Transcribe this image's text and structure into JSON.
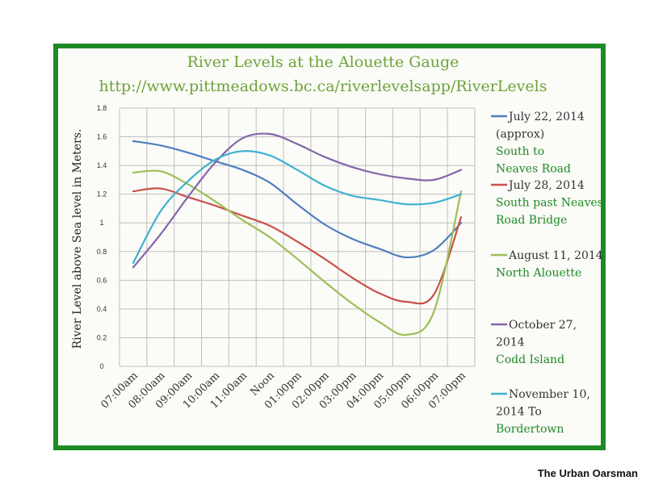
{
  "chart_data": {
    "type": "line",
    "title": "River Levels at the Alouette Gauge",
    "subtitle": "http://www.pittmeadows.bc.ca/riverlevelsapp/RiverLevels",
    "ylabel": "River Level  above  Sea level in Meters.",
    "xlabel": "",
    "ylim": [
      0,
      1.8
    ],
    "yticks": [
      "0",
      "0.2",
      "0.4",
      "0.6",
      "0.8",
      "1",
      "1.2",
      "1.4",
      "1.6",
      "1.8"
    ],
    "categories": [
      "07:00am",
      "08:00am",
      "09:00am",
      "10:00am",
      "11:00am",
      "Noon",
      "01:00pm",
      "02:00pm",
      "03:00pm",
      "04:00pm",
      "05:00pm",
      "06:00pm",
      "07:00pm"
    ],
    "grid": true,
    "legend_position": "right",
    "series": [
      {
        "name": "July 22, 2014 (approx)",
        "note": "South to Neaves Road",
        "color": "#4f7fbf",
        "values": [
          1.57,
          1.54,
          1.49,
          1.43,
          1.37,
          1.28,
          1.13,
          0.99,
          0.89,
          0.82,
          0.76,
          0.81,
          1.0
        ]
      },
      {
        "name": "July 28, 2014",
        "note": "South past Neaves Road Bridge",
        "color": "#c9504a",
        "values": [
          1.22,
          1.24,
          1.18,
          1.12,
          1.05,
          0.98,
          0.87,
          0.75,
          0.62,
          0.51,
          0.45,
          0.5,
          1.04
        ]
      },
      {
        "name": "August 11, 2014",
        "note": "North Alouette",
        "color": "#9cc055",
        "values": [
          1.35,
          1.36,
          1.27,
          1.15,
          1.02,
          0.9,
          0.75,
          0.59,
          0.44,
          0.31,
          0.22,
          0.38,
          1.22
        ]
      },
      {
        "name": "October 27, 2014",
        "note": "Codd Island",
        "color": "#8466aa",
        "values": [
          0.69,
          0.92,
          1.18,
          1.42,
          1.59,
          1.62,
          1.55,
          1.46,
          1.39,
          1.34,
          1.31,
          1.3,
          1.37
        ]
      },
      {
        "name": "November 10, 2014",
        "note": "To Bordertown",
        "color": "#3fb2cf",
        "values": [
          0.72,
          1.08,
          1.29,
          1.44,
          1.5,
          1.47,
          1.37,
          1.26,
          1.19,
          1.16,
          1.13,
          1.14,
          1.2
        ]
      }
    ],
    "legend_lines": [
      [
        "July 22, 2014",
        "(approx)",
        "South to",
        "Neaves Road"
      ],
      [
        "July 28, 2014",
        "South past Neaves",
        "Road Bridge"
      ],
      [
        "August 11, 2014",
        "North Alouette"
      ],
      [
        "October 27,",
        "2014",
        "Codd Island"
      ],
      [
        "November 10,",
        "2014  To",
        "Bordertown"
      ]
    ]
  },
  "credit": "The Urban Oarsman"
}
